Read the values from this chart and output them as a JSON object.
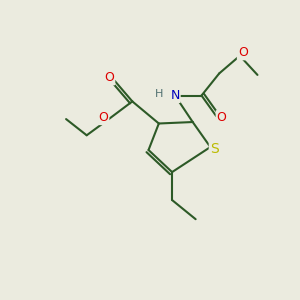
{
  "background_color": "#ebebdf",
  "bond_color": "#2d5a27",
  "bond_width": 1.5,
  "atom_colors": {
    "O": "#dd0000",
    "N": "#0000bb",
    "S": "#bbbb00",
    "H": "#507070",
    "C": "#2d5a27"
  },
  "font_size": 9,
  "figsize": [
    3.0,
    3.0
  ],
  "dpi": 100
}
